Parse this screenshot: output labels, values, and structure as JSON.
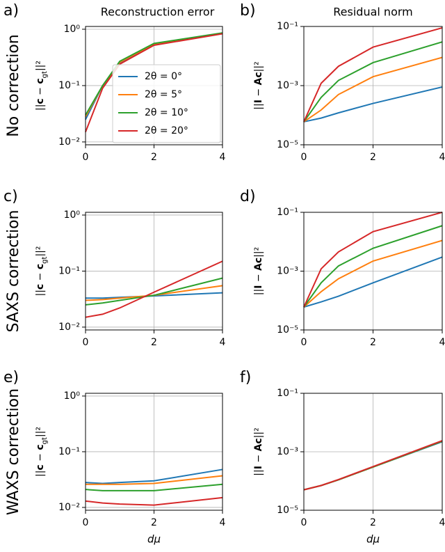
{
  "chart_data": [
    {
      "type": "line",
      "panel_label": "a)",
      "title": "Reconstruction error",
      "row_label": "No correction",
      "ylabel": [
        "||",
        "c",
        " − ",
        "c",
        "gt",
        "||²"
      ],
      "x": [
        0,
        0.5,
        1,
        2,
        4
      ],
      "xlim": [
        0,
        4
      ],
      "xticks": [
        0,
        2,
        4
      ],
      "ylim": [
        0.0089,
        1.12
      ],
      "log_y": true,
      "grid": true,
      "legend": "lower right",
      "yticks": [
        {
          "value": 0.01,
          "label": "10⁻²"
        },
        {
          "value": 0.1,
          "label": "10⁻¹"
        },
        {
          "value": 1,
          "label": "10⁰"
        }
      ],
      "series": [
        {
          "name": "2θ = 0°",
          "color": "#1f77b4",
          "values": [
            0.025,
            0.1,
            0.25,
            0.55,
            0.85
          ]
        },
        {
          "name": "2θ = 5°",
          "color": "#ff7f0e",
          "values": [
            0.028,
            0.1,
            0.26,
            0.55,
            0.85
          ]
        },
        {
          "name": "2θ = 10°",
          "color": "#2ca02c",
          "values": [
            0.03,
            0.1,
            0.27,
            0.56,
            0.86
          ]
        },
        {
          "name": "2θ = 20°",
          "color": "#d62728",
          "values": [
            0.015,
            0.09,
            0.24,
            0.52,
            0.83
          ]
        }
      ]
    },
    {
      "type": "line",
      "panel_label": "b)",
      "title": "Residual norm",
      "ylabel": [
        "||",
        "I",
        " − ",
        "Ac",
        "",
        "||²"
      ],
      "x": [
        0,
        0.5,
        1,
        2,
        4
      ],
      "xlim": [
        0,
        4
      ],
      "xticks": [
        0,
        2,
        4
      ],
      "ylim": [
        1e-05,
        0.1
      ],
      "log_y": true,
      "grid": true,
      "yticks": [
        {
          "value": 1e-05,
          "label": "10⁻⁵"
        },
        {
          "value": 0.001,
          "label": "10⁻³"
        },
        {
          "value": 0.1,
          "label": "10⁻¹"
        }
      ],
      "series": [
        {
          "color": "#1f77b4",
          "values": [
            6e-05,
            8e-05,
            0.00012,
            0.00025,
            0.0009
          ]
        },
        {
          "color": "#ff7f0e",
          "values": [
            6e-05,
            0.00015,
            0.0005,
            0.002,
            0.009
          ]
        },
        {
          "color": "#2ca02c",
          "values": [
            6e-05,
            0.0004,
            0.0015,
            0.006,
            0.03
          ]
        },
        {
          "color": "#d62728",
          "values": [
            6e-05,
            0.0012,
            0.0045,
            0.02,
            0.09
          ]
        }
      ]
    },
    {
      "type": "line",
      "panel_label": "c)",
      "row_label": "SAXS correction",
      "ylabel": [
        "||",
        "c",
        " − ",
        "c",
        "gt",
        "||²"
      ],
      "x": [
        0,
        0.5,
        1,
        2,
        4
      ],
      "xlim": [
        0,
        4
      ],
      "xticks": [
        0,
        2,
        4
      ],
      "ylim": [
        0.0089,
        1.12
      ],
      "log_y": true,
      "grid": true,
      "yticks": [
        {
          "value": 0.01,
          "label": "10⁻²"
        },
        {
          "value": 0.1,
          "label": "10⁻¹"
        },
        {
          "value": 1,
          "label": "10⁰"
        }
      ],
      "series": [
        {
          "color": "#1f77b4",
          "values": [
            0.033,
            0.033,
            0.034,
            0.036,
            0.041
          ]
        },
        {
          "color": "#ff7f0e",
          "values": [
            0.03,
            0.031,
            0.033,
            0.037,
            0.055
          ]
        },
        {
          "color": "#2ca02c",
          "values": [
            0.025,
            0.027,
            0.03,
            0.037,
            0.075
          ]
        },
        {
          "color": "#d62728",
          "values": [
            0.015,
            0.017,
            0.022,
            0.042,
            0.15
          ]
        }
      ]
    },
    {
      "type": "line",
      "panel_label": "d)",
      "ylabel": [
        "||",
        "I",
        " − ",
        "Ac",
        "",
        "||²"
      ],
      "x": [
        0,
        0.5,
        1,
        2,
        4
      ],
      "xlim": [
        0,
        4
      ],
      "xticks": [
        0,
        2,
        4
      ],
      "ylim": [
        1e-05,
        0.1
      ],
      "log_y": true,
      "grid": true,
      "yticks": [
        {
          "value": 1e-05,
          "label": "10⁻⁵"
        },
        {
          "value": 0.001,
          "label": "10⁻³"
        },
        {
          "value": 0.1,
          "label": "10⁻¹"
        }
      ],
      "series": [
        {
          "color": "#1f77b4",
          "values": [
            6e-05,
            9e-05,
            0.00014,
            0.0004,
            0.003
          ]
        },
        {
          "color": "#ff7f0e",
          "values": [
            6e-05,
            0.0002,
            0.00055,
            0.0022,
            0.011
          ]
        },
        {
          "color": "#2ca02c",
          "values": [
            6e-05,
            0.0004,
            0.0015,
            0.006,
            0.035
          ]
        },
        {
          "color": "#d62728",
          "values": [
            6e-05,
            0.0012,
            0.0045,
            0.022,
            0.1
          ]
        }
      ]
    },
    {
      "type": "line",
      "panel_label": "e)",
      "row_label": "WAXS correction",
      "xlabel": "dμ",
      "ylabel": [
        "||",
        "c",
        " − ",
        "c",
        "gt",
        "||²"
      ],
      "x": [
        0,
        0.5,
        1,
        2,
        4
      ],
      "xlim": [
        0,
        4
      ],
      "xticks": [
        0,
        2,
        4
      ],
      "ylim": [
        0.0089,
        1.12
      ],
      "log_y": true,
      "grid": true,
      "yticks": [
        {
          "value": 0.01,
          "label": "10⁻²"
        },
        {
          "value": 0.1,
          "label": "10⁻¹"
        },
        {
          "value": 1,
          "label": "10⁰"
        }
      ],
      "series": [
        {
          "color": "#1f77b4",
          "values": [
            0.028,
            0.027,
            0.028,
            0.03,
            0.048
          ]
        },
        {
          "color": "#ff7f0e",
          "values": [
            0.026,
            0.026,
            0.026,
            0.027,
            0.037
          ]
        },
        {
          "color": "#2ca02c",
          "values": [
            0.021,
            0.02,
            0.02,
            0.02,
            0.026
          ]
        },
        {
          "color": "#d62728",
          "values": [
            0.013,
            0.012,
            0.0115,
            0.011,
            0.015
          ]
        }
      ]
    },
    {
      "type": "line",
      "panel_label": "f)",
      "xlabel": "dμ",
      "ylabel": [
        "||",
        "I",
        " − ",
        "Ac",
        "",
        "||²"
      ],
      "x": [
        0,
        0.5,
        1,
        2,
        4
      ],
      "xlim": [
        0,
        4
      ],
      "xticks": [
        0,
        2,
        4
      ],
      "ylim": [
        1e-05,
        0.1
      ],
      "log_y": true,
      "grid": true,
      "yticks": [
        {
          "value": 1e-05,
          "label": "10⁻⁵"
        },
        {
          "value": 0.001,
          "label": "10⁻³"
        },
        {
          "value": 0.1,
          "label": "10⁻¹"
        }
      ],
      "series": [
        {
          "color": "#1f77b4",
          "values": [
            5e-05,
            7e-05,
            0.00011,
            0.0003,
            0.0022
          ]
        },
        {
          "color": "#ff7f0e",
          "values": [
            5e-05,
            7e-05,
            0.00011,
            0.0003,
            0.0023
          ]
        },
        {
          "color": "#2ca02c",
          "values": [
            5e-05,
            7e-05,
            0.00011,
            0.0003,
            0.0023
          ]
        },
        {
          "color": "#d62728",
          "values": [
            5e-05,
            7e-05,
            0.000112,
            0.00031,
            0.0024
          ]
        }
      ]
    }
  ]
}
